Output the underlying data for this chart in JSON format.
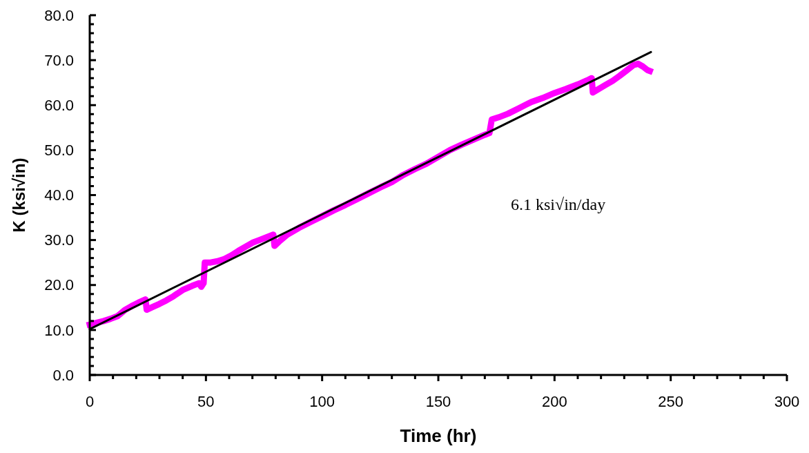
{
  "chart_data": {
    "type": "line",
    "xlabel": "Time (hr)",
    "ylabel": "K (ksi√in)",
    "xlim": [
      0,
      300
    ],
    "ylim": [
      0,
      80
    ],
    "xticks": [
      0,
      {
        "value": 10,
        "label": null
      },
      {
        "value": 20,
        "label": null
      },
      {
        "value": 30,
        "label": null
      },
      {
        "value": 40,
        "label": null
      },
      50,
      {
        "value": 60,
        "label": null
      },
      {
        "value": 70,
        "label": null
      },
      {
        "value": 80,
        "label": null
      },
      {
        "value": 90,
        "label": null
      },
      100,
      {
        "value": 110,
        "label": null
      },
      {
        "value": 120,
        "label": null
      },
      {
        "value": 130,
        "label": null
      },
      {
        "value": 140,
        "label": null
      },
      150,
      {
        "value": 160,
        "label": null
      },
      {
        "value": 170,
        "label": null
      },
      {
        "value": 180,
        "label": null
      },
      {
        "value": 190,
        "label": null
      },
      200,
      {
        "value": 210,
        "label": null
      },
      {
        "value": 220,
        "label": null
      },
      {
        "value": 230,
        "label": null
      },
      {
        "value": 240,
        "label": null
      },
      250,
      {
        "value": 260,
        "label": null
      },
      {
        "value": 270,
        "label": null
      },
      {
        "value": 280,
        "label": null
      },
      {
        "value": 290,
        "label": null
      },
      300
    ],
    "yticks": [
      {
        "value": 0,
        "label": "0.0"
      },
      {
        "value": 2,
        "label": null
      },
      {
        "value": 4,
        "label": null
      },
      {
        "value": 6,
        "label": null
      },
      {
        "value": 8,
        "label": null
      },
      {
        "value": 10,
        "label": "10.0"
      },
      {
        "value": 12,
        "label": null
      },
      {
        "value": 14,
        "label": null
      },
      {
        "value": 16,
        "label": null
      },
      {
        "value": 18,
        "label": null
      },
      {
        "value": 20,
        "label": "20.0"
      },
      {
        "value": 22,
        "label": null
      },
      {
        "value": 24,
        "label": null
      },
      {
        "value": 26,
        "label": null
      },
      {
        "value": 28,
        "label": null
      },
      {
        "value": 30,
        "label": "30.0"
      },
      {
        "value": 32,
        "label": null
      },
      {
        "value": 34,
        "label": null
      },
      {
        "value": 36,
        "label": null
      },
      {
        "value": 38,
        "label": null
      },
      {
        "value": 40,
        "label": "40.0"
      },
      {
        "value": 42,
        "label": null
      },
      {
        "value": 44,
        "label": null
      },
      {
        "value": 46,
        "label": null
      },
      {
        "value": 48,
        "label": null
      },
      {
        "value": 50,
        "label": "50.0"
      },
      {
        "value": 52,
        "label": null
      },
      {
        "value": 54,
        "label": null
      },
      {
        "value": 56,
        "label": null
      },
      {
        "value": 58,
        "label": null
      },
      {
        "value": 60,
        "label": "60.0"
      },
      {
        "value": 62,
        "label": null
      },
      {
        "value": 64,
        "label": null
      },
      {
        "value": 66,
        "label": null
      },
      {
        "value": 68,
        "label": null
      },
      {
        "value": 70,
        "label": "70.0"
      },
      {
        "value": 72,
        "label": null
      },
      {
        "value": 74,
        "label": null
      },
      {
        "value": 76,
        "label": null
      },
      {
        "value": 78,
        "label": null
      },
      {
        "value": 80,
        "label": "80.0"
      }
    ],
    "grid": false,
    "annotations": [
      "6.1 ksi√in/day"
    ],
    "series": [
      {
        "color": "#ff00ff",
        "x": [
          0,
          3,
          6,
          9,
          12,
          15,
          18,
          21,
          24,
          24.5,
          27,
          30,
          33,
          36,
          40,
          44,
          47,
          48,
          49,
          49.5,
          52,
          55,
          58,
          61,
          64,
          67,
          70,
          73,
          76,
          79,
          79.5,
          82,
          85,
          90,
          95,
          100,
          105,
          110,
          115,
          120,
          125,
          130,
          135,
          140,
          145,
          150,
          155,
          160,
          165,
          170,
          172,
          173,
          176,
          180,
          185,
          190,
          195,
          200,
          205,
          210,
          214,
          216,
          216.5,
          219,
          222,
          225,
          228,
          231,
          234,
          236,
          238,
          240,
          241
        ],
        "values": [
          11.2,
          11.6,
          12.0,
          12.5,
          13.1,
          14.4,
          15.3,
          16.1,
          16.8,
          14.5,
          15.1,
          15.8,
          16.6,
          17.5,
          18.9,
          19.8,
          20.4,
          19.6,
          20.4,
          25.0,
          25.0,
          25.3,
          25.8,
          26.6,
          27.6,
          28.5,
          29.4,
          30.0,
          30.6,
          31.2,
          28.7,
          29.9,
          31.2,
          32.7,
          34.0,
          35.3,
          36.6,
          37.8,
          39.1,
          40.4,
          41.7,
          42.9,
          44.5,
          45.8,
          47.0,
          48.5,
          50.0,
          51.2,
          52.3,
          53.4,
          53.8,
          56.8,
          57.3,
          58.1,
          59.4,
          60.7,
          61.6,
          62.7,
          63.6,
          64.6,
          65.5,
          66.0,
          62.8,
          63.6,
          64.5,
          65.4,
          66.5,
          67.7,
          68.9,
          69.2,
          68.6,
          67.8,
          67.6
        ]
      },
      {
        "type": "line",
        "color": "#000000",
        "x": [
          0,
          241.5
        ],
        "values": [
          10.2,
          71.8
        ]
      }
    ]
  }
}
